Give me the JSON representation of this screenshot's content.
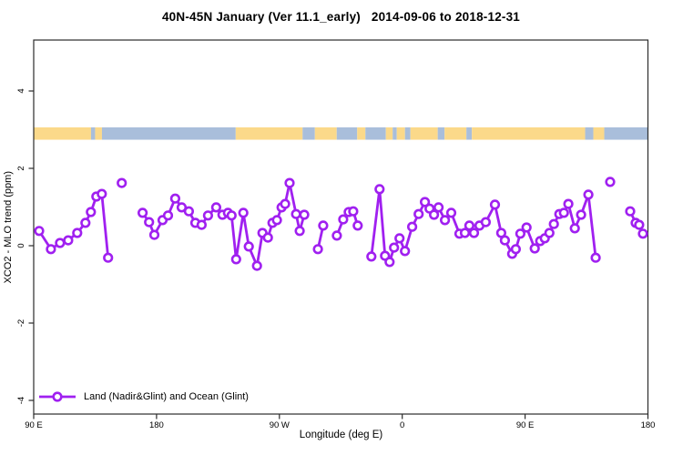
{
  "title": "40N-45N January (Ver 11.1_early)   2014-09-06 to 2018-12-31",
  "colors": {
    "series": "#A020F0",
    "land": "#FBD98A",
    "ocean": "#A9BEDB",
    "frame": "#2b2b2b",
    "text": "#000000"
  },
  "chart_data": {
    "type": "line",
    "title": "40N-45N January (Ver 11.1_early)   2014-09-06 to 2018-12-31",
    "xlabel": "Longitude (deg E)",
    "ylabel": "XCO2 - MLO trend (ppm)",
    "grid": false,
    "x_axis": {
      "range": [
        0,
        450
      ],
      "note": "axis position in degrees eastward from 90E (wraps across dateline and prime meridian)",
      "ticks": [
        {
          "pos": 0,
          "label": "90 E"
        },
        {
          "pos": 90,
          "label": "180"
        },
        {
          "pos": 180,
          "label": "90 W"
        },
        {
          "pos": 270,
          "label": "0"
        },
        {
          "pos": 360,
          "label": "90 E"
        },
        {
          "pos": 450,
          "label": "180"
        }
      ]
    },
    "y_axis": {
      "range": [
        -4.4,
        5.3
      ],
      "ticks": [
        4,
        2,
        0,
        -2,
        -4
      ]
    },
    "legend": {
      "label": "Land (Nadir&Glint) and Ocean (Glint)",
      "position": "bottom-left",
      "marker": "open-circle-on-line"
    },
    "land_ocean_band": {
      "ppm_top": 3.06,
      "ppm_bottom": 2.74,
      "land_color": "#FBD98A",
      "ocean_color": "#A9BEDB",
      "segments": [
        {
          "from": 0,
          "to": 42,
          "type": "land"
        },
        {
          "from": 42,
          "to": 45,
          "type": "ocean"
        },
        {
          "from": 45,
          "to": 50,
          "type": "land"
        },
        {
          "from": 50,
          "to": 148,
          "type": "ocean"
        },
        {
          "from": 148,
          "to": 197,
          "type": "land"
        },
        {
          "from": 197,
          "to": 206,
          "type": "ocean"
        },
        {
          "from": 206,
          "to": 222,
          "type": "land"
        },
        {
          "from": 222,
          "to": 237,
          "type": "ocean"
        },
        {
          "from": 237,
          "to": 243,
          "type": "land"
        },
        {
          "from": 243,
          "to": 258,
          "type": "ocean"
        },
        {
          "from": 258,
          "to": 263,
          "type": "land"
        },
        {
          "from": 263,
          "to": 266,
          "type": "ocean"
        },
        {
          "from": 266,
          "to": 272,
          "type": "land"
        },
        {
          "from": 272,
          "to": 276,
          "type": "ocean"
        },
        {
          "from": 276,
          "to": 296,
          "type": "land"
        },
        {
          "from": 296,
          "to": 301,
          "type": "ocean"
        },
        {
          "from": 301,
          "to": 317,
          "type": "land"
        },
        {
          "from": 317,
          "to": 321,
          "type": "ocean"
        },
        {
          "from": 321,
          "to": 404,
          "type": "land"
        },
        {
          "from": 404,
          "to": 410,
          "type": "ocean"
        },
        {
          "from": 410,
          "to": 418,
          "type": "land"
        },
        {
          "from": 418,
          "to": 450,
          "type": "ocean"
        }
      ]
    },
    "series": [
      {
        "name": "Land (Nadir&Glint) and Ocean (Glint)",
        "color": "#A020F0",
        "segments": [
          [
            [
              4.0,
              0.38
            ],
            [
              12.6,
              -0.09
            ],
            [
              19.3,
              0.07
            ],
            [
              25.3,
              0.14
            ],
            [
              31.9,
              0.33
            ],
            [
              37.9,
              0.59
            ],
            [
              41.9,
              0.87
            ],
            [
              45.9,
              1.27
            ],
            [
              49.9,
              1.34
            ],
            [
              54.5,
              -0.31
            ]
          ],
          [
            [
              64.5,
              1.62
            ]
          ],
          [
            [
              79.8,
              0.85
            ],
            [
              84.5,
              0.61
            ],
            [
              88.4,
              0.28
            ],
            [
              94.4,
              0.66
            ],
            [
              98.4,
              0.78
            ],
            [
              103.7,
              1.22
            ],
            [
              108.4,
              0.99
            ],
            [
              113.7,
              0.89
            ],
            [
              118.4,
              0.59
            ],
            [
              123.0,
              0.54
            ],
            [
              127.7,
              0.78
            ],
            [
              133.7,
              0.99
            ],
            [
              138.3,
              0.8
            ],
            [
              142.3,
              0.85
            ],
            [
              145.0,
              0.78
            ],
            [
              148.3,
              -0.35
            ],
            [
              153.6,
              0.85
            ],
            [
              157.6,
              -0.02
            ],
            [
              163.6,
              -0.52
            ],
            [
              167.6,
              0.33
            ],
            [
              171.6,
              0.21
            ],
            [
              174.9,
              0.59
            ],
            [
              178.2,
              0.66
            ],
            [
              181.6,
              0.99
            ],
            [
              184.2,
              1.08
            ],
            [
              187.5,
              1.62
            ],
            [
              192.2,
              0.82
            ],
            [
              194.9,
              0.38
            ],
            [
              198.2,
              0.8
            ]
          ],
          [
            [
              208.2,
              -0.09
            ],
            [
              212.1,
              0.52
            ]
          ],
          [
            [
              222.1,
              0.26
            ],
            [
              226.8,
              0.68
            ],
            [
              230.8,
              0.87
            ],
            [
              234.1,
              0.89
            ],
            [
              237.4,
              0.52
            ]
          ],
          [
            [
              247.4,
              -0.28
            ],
            [
              253.4,
              1.46
            ],
            [
              257.4,
              -0.26
            ],
            [
              260.7,
              -0.42
            ],
            [
              264.0,
              -0.05
            ],
            [
              268.0,
              0.19
            ],
            [
              272.0,
              -0.14
            ],
            [
              277.3,
              0.49
            ],
            [
              282.0,
              0.82
            ],
            [
              286.6,
              1.13
            ],
            [
              290.0,
              0.96
            ],
            [
              293.3,
              0.8
            ],
            [
              296.6,
              0.99
            ],
            [
              301.3,
              0.66
            ],
            [
              305.9,
              0.85
            ],
            [
              311.9,
              0.31
            ],
            [
              315.9,
              0.33
            ],
            [
              319.2,
              0.52
            ],
            [
              322.6,
              0.33
            ],
            [
              326.6,
              0.52
            ],
            [
              331.2,
              0.61
            ],
            [
              337.9,
              1.06
            ],
            [
              342.5,
              0.33
            ],
            [
              345.2,
              0.14
            ],
            [
              350.5,
              -0.21
            ],
            [
              353.2,
              -0.09
            ],
            [
              356.5,
              0.31
            ],
            [
              361.1,
              0.47
            ],
            [
              367.1,
              -0.07
            ],
            [
              371.1,
              0.12
            ],
            [
              374.4,
              0.19
            ],
            [
              377.8,
              0.33
            ],
            [
              381.1,
              0.56
            ],
            [
              385.1,
              0.82
            ],
            [
              388.4,
              0.85
            ],
            [
              391.7,
              1.08
            ],
            [
              396.4,
              0.45
            ],
            [
              401.0,
              0.8
            ],
            [
              406.4,
              1.32
            ],
            [
              411.7,
              -0.31
            ]
          ],
          [
            [
              422.3,
              1.65
            ]
          ],
          [
            [
              437.0,
              0.89
            ],
            [
              441.0,
              0.59
            ],
            [
              443.6,
              0.54
            ],
            [
              446.3,
              0.31
            ]
          ]
        ]
      }
    ]
  }
}
